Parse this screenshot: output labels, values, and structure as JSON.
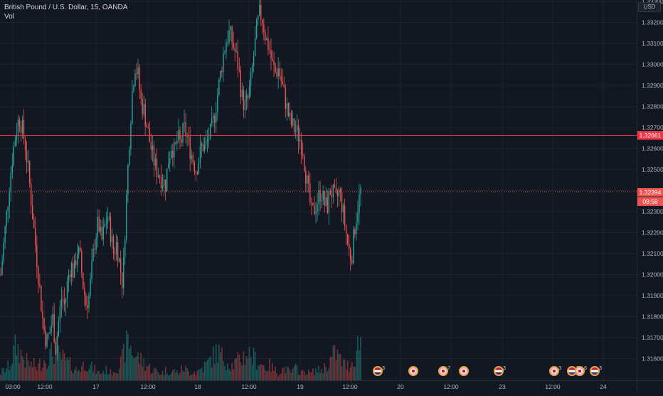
{
  "legend": {
    "symbol_title": "British Pound / U.S. Dollar, 15, OANDA",
    "indicator": "Vol"
  },
  "price_axis": {
    "currency": "USD",
    "labels": [
      "1.33100",
      "1.33000",
      "1.32900",
      "1.32800",
      "1.32700",
      "1.32600",
      "1.32500",
      "1.32300",
      "1.32200",
      "1.32100",
      "1.32000",
      "1.31900",
      "1.31800",
      "1.31700",
      "1.31600"
    ],
    "top_partial_label": "1.33300",
    "label_1_33200": "1.33200",
    "horizontal_line_tag": "1.32661",
    "last_price_tag": "1.32394",
    "countdown_tag": "08:58"
  },
  "time_axis": {
    "labels": [
      "03:00",
      "12:00",
      "17",
      "12:00",
      "18",
      "12:00",
      "19",
      "12:00",
      "20",
      "12:00",
      "23",
      "12:00",
      "24"
    ]
  },
  "events": [
    {
      "flag": "us",
      "count": "3"
    },
    {
      "flag": "uk",
      "count": ""
    },
    {
      "flag": "uk",
      "count": "7"
    },
    {
      "flag": "uk",
      "count": ""
    },
    {
      "flag": "us",
      "count": "3"
    },
    {
      "flag": "uk",
      "count": "3"
    },
    {
      "flag": "us",
      "count": "3"
    },
    {
      "flag": "uk",
      "count": "6"
    },
    {
      "flag": "us",
      "count": "3"
    }
  ],
  "colors": {
    "up": "#26a69a",
    "down": "#ef5350",
    "horizontal_line": "#f23645",
    "background": "#131722"
  },
  "chart_data": {
    "type": "candlestick",
    "title": "British Pound / U.S. Dollar, 15, OANDA",
    "ylim": [
      1.3155,
      1.3335
    ],
    "horizontal_line": 1.32661,
    "last_price": 1.32394,
    "price_path": [
      1.32,
      1.3215,
      1.323,
      1.3245,
      1.3258,
      1.3268,
      1.3275,
      1.327,
      1.3262,
      1.325,
      1.3235,
      1.322,
      1.3205,
      1.319,
      1.3175,
      1.3168,
      1.3172,
      1.318,
      1.3165,
      1.3178,
      1.319,
      1.3185,
      1.3198,
      1.3205,
      1.32,
      1.3212,
      1.3208,
      1.3195,
      1.3186,
      1.319,
      1.3205,
      1.3218,
      1.3225,
      1.3215,
      1.3222,
      1.3228,
      1.322,
      1.321,
      1.3215,
      1.3205,
      1.3195,
      1.323,
      1.326,
      1.3285,
      1.33,
      1.3295,
      1.3282,
      1.3278,
      1.327,
      1.3262,
      1.3255,
      1.325,
      1.3248,
      1.3245,
      1.3243,
      1.3255,
      1.3262,
      1.3258,
      1.3265,
      1.3262,
      1.327,
      1.3266,
      1.326,
      1.3255,
      1.325,
      1.3255,
      1.3262,
      1.326,
      1.3265,
      1.3268,
      1.3275,
      1.3285,
      1.3295,
      1.3305,
      1.3312,
      1.3315,
      1.331,
      1.3305,
      1.3298,
      1.3285,
      1.328,
      1.3283,
      1.3292,
      1.3305,
      1.3318,
      1.3325,
      1.332,
      1.3312,
      1.3308,
      1.33,
      1.3296,
      1.3298,
      1.3292,
      1.3285,
      1.3278,
      1.3272,
      1.327,
      1.3268,
      1.3265,
      1.326,
      1.3248,
      1.3238,
      1.3228,
      1.3232,
      1.3236,
      1.324,
      1.3234,
      1.3232,
      1.324,
      1.3238,
      1.3235,
      1.324,
      1.3232,
      1.3222,
      1.3212,
      1.3208,
      1.3222,
      1.3232,
      1.324
    ],
    "volume_profile": [
      0.15,
      0.2,
      0.25,
      0.3,
      0.5,
      0.7,
      0.6,
      0.5,
      0.4,
      0.35,
      0.3,
      0.3,
      0.25,
      0.35,
      0.4,
      0.45,
      0.5,
      0.55,
      0.6,
      0.5,
      0.45,
      0.4,
      0.35,
      0.3,
      0.25,
      0.2,
      0.25,
      0.3,
      0.35,
      0.3,
      0.25,
      0.2,
      0.15,
      0.15,
      0.2,
      0.2,
      0.15,
      0.2,
      0.25,
      0.3,
      0.45,
      0.7,
      0.8,
      0.6,
      0.5,
      0.45,
      0.4,
      0.35,
      0.3,
      0.25,
      0.2,
      0.2,
      0.15,
      0.15,
      0.2,
      0.2,
      0.15,
      0.2,
      0.15,
      0.2,
      0.25,
      0.2,
      0.15,
      0.2,
      0.15,
      0.2,
      0.25,
      0.3,
      0.35,
      0.45,
      0.5,
      0.6,
      0.5,
      0.45,
      0.4,
      0.35,
      0.3,
      0.35,
      0.4,
      0.45,
      0.5,
      0.55,
      0.5,
      0.45,
      0.4,
      0.35,
      0.3,
      0.25,
      0.3,
      0.25,
      0.2,
      0.15,
      0.2,
      0.25,
      0.2,
      0.15,
      0.2,
      0.25,
      0.2,
      0.15,
      0.2,
      0.15,
      0.15,
      0.2,
      0.2,
      0.2,
      0.25,
      0.3,
      0.4,
      0.5,
      0.55,
      0.45,
      0.35,
      0.3,
      0.3,
      0.35,
      0.45,
      0.7,
      0.9
    ]
  }
}
